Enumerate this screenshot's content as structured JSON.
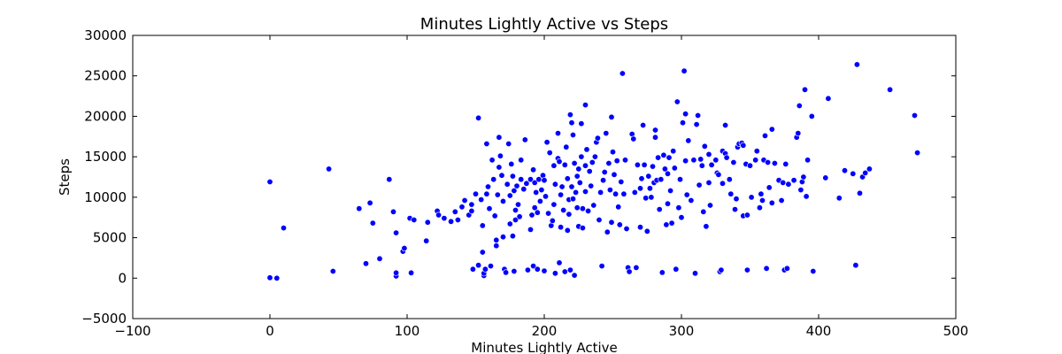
{
  "chart_data": {
    "type": "scatter",
    "title": "Minutes Lightly Active vs Steps",
    "xlabel": "Minutes Lightly Active",
    "ylabel": "Steps",
    "xlim": [
      -100,
      500
    ],
    "ylim": [
      -5000,
      30000
    ],
    "xticks": [
      -100,
      0,
      100,
      200,
      300,
      400,
      500
    ],
    "yticks": [
      -5000,
      0,
      5000,
      10000,
      15000,
      20000,
      25000,
      30000
    ],
    "grid": false,
    "marker_color": "#0000ff",
    "series": [
      {
        "name": "Steps",
        "points": [
          [
            0,
            11900
          ],
          [
            0,
            50
          ],
          [
            5,
            0
          ],
          [
            10,
            6200
          ],
          [
            43,
            13500
          ],
          [
            46,
            850
          ],
          [
            65,
            8600
          ],
          [
            70,
            1800
          ],
          [
            73,
            9300
          ],
          [
            75,
            6800
          ],
          [
            80,
            2400
          ],
          [
            87,
            12200
          ],
          [
            90,
            8200
          ],
          [
            92,
            5600
          ],
          [
            92,
            250
          ],
          [
            92,
            650
          ],
          [
            97,
            3300
          ],
          [
            98,
            3700
          ],
          [
            102,
            7400
          ],
          [
            103,
            650
          ],
          [
            105,
            7200
          ],
          [
            114,
            4600
          ],
          [
            115,
            6900
          ],
          [
            122,
            8300
          ],
          [
            123,
            7800
          ],
          [
            127,
            7400
          ],
          [
            132,
            7000
          ],
          [
            135,
            8200
          ],
          [
            137,
            7200
          ],
          [
            140,
            8800
          ],
          [
            142,
            9600
          ],
          [
            145,
            7800
          ],
          [
            147,
            8300
          ],
          [
            147,
            9100
          ],
          [
            148,
            1100
          ],
          [
            150,
            10400
          ],
          [
            152,
            19800
          ],
          [
            152,
            1600
          ],
          [
            154,
            9700
          ],
          [
            155,
            6500
          ],
          [
            155,
            3200
          ],
          [
            156,
            300
          ],
          [
            156,
            600
          ],
          [
            157,
            1100
          ],
          [
            158,
            16600
          ],
          [
            158,
            10400
          ],
          [
            159,
            11300
          ],
          [
            160,
            8600
          ],
          [
            161,
            1500
          ],
          [
            162,
            14600
          ],
          [
            163,
            12200
          ],
          [
            164,
            7700
          ],
          [
            165,
            4700
          ],
          [
            165,
            4000
          ],
          [
            166,
            10300
          ],
          [
            167,
            13700
          ],
          [
            167,
            17400
          ],
          [
            168,
            15100
          ],
          [
            169,
            12700
          ],
          [
            170,
            9500
          ],
          [
            170,
            5100
          ],
          [
            171,
            1100
          ],
          [
            172,
            700
          ],
          [
            173,
            11600
          ],
          [
            174,
            16600
          ],
          [
            175,
            10200
          ],
          [
            175,
            6700
          ],
          [
            176,
            14100
          ],
          [
            177,
            12600
          ],
          [
            177,
            5200
          ],
          [
            178,
            10800
          ],
          [
            178,
            850
          ],
          [
            179,
            8400
          ],
          [
            179,
            7200
          ],
          [
            180,
            11400
          ],
          [
            181,
            9100
          ],
          [
            182,
            7600
          ],
          [
            183,
            14600
          ],
          [
            183,
            12200
          ],
          [
            185,
            11000
          ],
          [
            186,
            17100
          ],
          [
            187,
            11700
          ],
          [
            188,
            1000
          ],
          [
            190,
            12200
          ],
          [
            190,
            6000
          ],
          [
            191,
            7800
          ],
          [
            192,
            13400
          ],
          [
            192,
            1500
          ],
          [
            193,
            11800
          ],
          [
            193,
            8700
          ],
          [
            194,
            10600
          ],
          [
            195,
            8100
          ],
          [
            195,
            1100
          ],
          [
            196,
            12200
          ],
          [
            197,
            9500
          ],
          [
            198,
            10900
          ],
          [
            199,
            12700
          ],
          [
            200,
            12100
          ],
          [
            200,
            900
          ],
          [
            201,
            10100
          ],
          [
            202,
            16800
          ],
          [
            203,
            8000
          ],
          [
            204,
            15500
          ],
          [
            205,
            6500
          ],
          [
            206,
            7100
          ],
          [
            207,
            13900
          ],
          [
            207,
            9100
          ],
          [
            208,
            11600
          ],
          [
            208,
            600
          ],
          [
            210,
            17900
          ],
          [
            210,
            14800
          ],
          [
            211,
            14400
          ],
          [
            211,
            1900
          ],
          [
            212,
            10300
          ],
          [
            212,
            6300
          ],
          [
            213,
            11300
          ],
          [
            214,
            8400
          ],
          [
            215,
            14000
          ],
          [
            215,
            800
          ],
          [
            216,
            16200
          ],
          [
            217,
            12300
          ],
          [
            217,
            5900
          ],
          [
            218,
            9700
          ],
          [
            218,
            7900
          ],
          [
            219,
            20200
          ],
          [
            219,
            1000
          ],
          [
            220,
            19200
          ],
          [
            220,
            11300
          ],
          [
            221,
            17700
          ],
          [
            221,
            9800
          ],
          [
            222,
            14200
          ],
          [
            222,
            350
          ],
          [
            223,
            10600
          ],
          [
            224,
            12600
          ],
          [
            224,
            8700
          ],
          [
            225,
            13500
          ],
          [
            225,
            6400
          ],
          [
            226,
            11800
          ],
          [
            227,
            19100
          ],
          [
            227,
            15000
          ],
          [
            228,
            6200
          ],
          [
            228,
            8600
          ],
          [
            230,
            21400
          ],
          [
            230,
            13900
          ],
          [
            230,
            10700
          ],
          [
            231,
            15900
          ],
          [
            232,
            8300
          ],
          [
            233,
            13200
          ],
          [
            234,
            11400
          ],
          [
            235,
            14300
          ],
          [
            236,
            9000
          ],
          [
            237,
            15000
          ],
          [
            238,
            16800
          ],
          [
            239,
            17300
          ],
          [
            240,
            7200
          ],
          [
            241,
            10600
          ],
          [
            242,
            1500
          ],
          [
            243,
            12100
          ],
          [
            244,
            13100
          ],
          [
            245,
            17900
          ],
          [
            246,
            5700
          ],
          [
            247,
            14200
          ],
          [
            248,
            10900
          ],
          [
            249,
            19900
          ],
          [
            249,
            6900
          ],
          [
            250,
            15600
          ],
          [
            251,
            12800
          ],
          [
            252,
            10400
          ],
          [
            253,
            14500
          ],
          [
            254,
            8800
          ],
          [
            255,
            6600
          ],
          [
            256,
            11900
          ],
          [
            257,
            25300
          ],
          [
            258,
            10400
          ],
          [
            259,
            14600
          ],
          [
            260,
            6100
          ],
          [
            261,
            1300
          ],
          [
            262,
            800
          ],
          [
            264,
            17800
          ],
          [
            265,
            17200
          ],
          [
            266,
            10600
          ],
          [
            267,
            1300
          ],
          [
            268,
            14000
          ],
          [
            270,
            6300
          ],
          [
            270,
            11100
          ],
          [
            271,
            12300
          ],
          [
            272,
            18900
          ],
          [
            273,
            14000
          ],
          [
            274,
            9900
          ],
          [
            275,
            5800
          ],
          [
            276,
            12600
          ],
          [
            277,
            11100
          ],
          [
            278,
            10000
          ],
          [
            279,
            13800
          ],
          [
            280,
            11800
          ],
          [
            281,
            18300
          ],
          [
            281,
            17400
          ],
          [
            282,
            12100
          ],
          [
            283,
            14900
          ],
          [
            284,
            8500
          ],
          [
            285,
            12200
          ],
          [
            286,
            700
          ],
          [
            287,
            15200
          ],
          [
            288,
            13500
          ],
          [
            289,
            6600
          ],
          [
            290,
            12900
          ],
          [
            290,
            9200
          ],
          [
            291,
            14900
          ],
          [
            292,
            10800
          ],
          [
            293,
            6800
          ],
          [
            294,
            15700
          ],
          [
            295,
            13600
          ],
          [
            296,
            1100
          ],
          [
            297,
            21800
          ],
          [
            298,
            8700
          ],
          [
            299,
            12200
          ],
          [
            300,
            7500
          ],
          [
            301,
            19200
          ],
          [
            302,
            25600
          ],
          [
            303,
            20300
          ],
          [
            303,
            14500
          ],
          [
            304,
            10300
          ],
          [
            305,
            17000
          ],
          [
            307,
            9600
          ],
          [
            309,
            14600
          ],
          [
            310,
            600
          ],
          [
            311,
            19000
          ],
          [
            312,
            20100
          ],
          [
            313,
            11500
          ],
          [
            314,
            14700
          ],
          [
            315,
            13900
          ],
          [
            316,
            8200
          ],
          [
            317,
            16300
          ],
          [
            318,
            6400
          ],
          [
            320,
            11800
          ],
          [
            320,
            15300
          ],
          [
            321,
            9000
          ],
          [
            322,
            14000
          ],
          [
            325,
            14600
          ],
          [
            326,
            13000
          ],
          [
            327,
            12800
          ],
          [
            328,
            800
          ],
          [
            329,
            1000
          ],
          [
            330,
            15700
          ],
          [
            330,
            11700
          ],
          [
            332,
            18900
          ],
          [
            332,
            15400
          ],
          [
            333,
            14900
          ],
          [
            335,
            12200
          ],
          [
            336,
            10400
          ],
          [
            338,
            14300
          ],
          [
            339,
            8500
          ],
          [
            340,
            9800
          ],
          [
            341,
            16200
          ],
          [
            342,
            16600
          ],
          [
            344,
            16700
          ],
          [
            345,
            7700
          ],
          [
            345,
            16400
          ],
          [
            347,
            14100
          ],
          [
            348,
            7800
          ],
          [
            348,
            1000
          ],
          [
            350,
            13900
          ],
          [
            351,
            10000
          ],
          [
            354,
            14600
          ],
          [
            355,
            15700
          ],
          [
            357,
            8700
          ],
          [
            358,
            10400
          ],
          [
            359,
            9600
          ],
          [
            360,
            14600
          ],
          [
            361,
            17600
          ],
          [
            362,
            1200
          ],
          [
            363,
            14300
          ],
          [
            364,
            11200
          ],
          [
            366,
            9300
          ],
          [
            366,
            18400
          ],
          [
            368,
            14200
          ],
          [
            371,
            12100
          ],
          [
            373,
            9600
          ],
          [
            374,
            11800
          ],
          [
            375,
            1000
          ],
          [
            376,
            14100
          ],
          [
            377,
            1200
          ],
          [
            378,
            11600
          ],
          [
            382,
            12100
          ],
          [
            384,
            17400
          ],
          [
            385,
            17900
          ],
          [
            386,
            21300
          ],
          [
            387,
            10900
          ],
          [
            388,
            11900
          ],
          [
            389,
            12500
          ],
          [
            390,
            23300
          ],
          [
            391,
            10100
          ],
          [
            392,
            14600
          ],
          [
            395,
            20000
          ],
          [
            396,
            850
          ],
          [
            405,
            12400
          ],
          [
            407,
            22200
          ],
          [
            415,
            9900
          ],
          [
            419,
            13300
          ],
          [
            425,
            12900
          ],
          [
            427,
            1600
          ],
          [
            428,
            26400
          ],
          [
            430,
            10500
          ],
          [
            432,
            12500
          ],
          [
            434,
            13000
          ],
          [
            437,
            13500
          ],
          [
            452,
            23300
          ],
          [
            470,
            20100
          ],
          [
            472,
            15500
          ]
        ]
      }
    ]
  }
}
